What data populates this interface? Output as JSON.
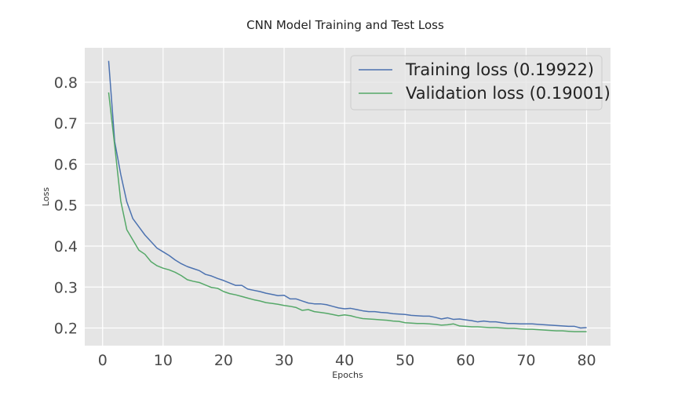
{
  "chart_data": {
    "type": "line",
    "title": "CNN Model Training and Test Loss",
    "xlabel": "Epochs",
    "ylabel": "Loss",
    "xlim": [
      -2.95,
      83.95
    ],
    "ylim": [
      0.157,
      0.884
    ],
    "xticks": [
      0,
      10,
      20,
      30,
      40,
      50,
      60,
      70,
      80
    ],
    "yticks": [
      0.2,
      0.3,
      0.4,
      0.5,
      0.6,
      0.7,
      0.8
    ],
    "grid": true,
    "legend_position": "top-right",
    "series": [
      {
        "name": "Training loss (0.19922)",
        "color": "#4c72b0",
        "x": [
          1,
          2,
          3,
          4,
          5,
          6,
          7,
          8,
          9,
          10,
          11,
          12,
          13,
          14,
          15,
          16,
          17,
          18,
          19,
          20,
          21,
          22,
          23,
          24,
          25,
          26,
          27,
          28,
          29,
          30,
          31,
          32,
          33,
          34,
          35,
          36,
          37,
          38,
          39,
          40,
          41,
          42,
          43,
          44,
          45,
          46,
          47,
          48,
          49,
          50,
          51,
          52,
          53,
          54,
          55,
          56,
          57,
          58,
          59,
          60,
          61,
          62,
          63,
          64,
          65,
          66,
          67,
          68,
          69,
          70,
          71,
          72,
          73,
          74,
          75,
          76,
          77,
          78,
          79,
          80
        ],
        "values": [
          0.852,
          0.655,
          0.575,
          0.508,
          0.467,
          0.447,
          0.427,
          0.411,
          0.395,
          0.386,
          0.377,
          0.366,
          0.357,
          0.35,
          0.345,
          0.34,
          0.331,
          0.327,
          0.321,
          0.316,
          0.31,
          0.304,
          0.304,
          0.295,
          0.292,
          0.289,
          0.285,
          0.282,
          0.279,
          0.28,
          0.271,
          0.271,
          0.266,
          0.261,
          0.259,
          0.259,
          0.257,
          0.253,
          0.249,
          0.247,
          0.248,
          0.245,
          0.242,
          0.24,
          0.24,
          0.238,
          0.237,
          0.235,
          0.234,
          0.233,
          0.231,
          0.23,
          0.229,
          0.229,
          0.226,
          0.222,
          0.225,
          0.221,
          0.222,
          0.22,
          0.218,
          0.215,
          0.217,
          0.215,
          0.215,
          0.213,
          0.211,
          0.211,
          0.21,
          0.21,
          0.21,
          0.209,
          0.208,
          0.207,
          0.206,
          0.205,
          0.204,
          0.204,
          0.2,
          0.201
        ]
      },
      {
        "name": "Validation loss (0.19001)",
        "color": "#55a868",
        "x": [
          1,
          2,
          3,
          4,
          5,
          6,
          7,
          8,
          9,
          10,
          11,
          12,
          13,
          14,
          15,
          16,
          17,
          18,
          19,
          20,
          21,
          22,
          23,
          24,
          25,
          26,
          27,
          28,
          29,
          30,
          31,
          32,
          33,
          34,
          35,
          36,
          37,
          38,
          39,
          40,
          41,
          42,
          43,
          44,
          45,
          46,
          47,
          48,
          49,
          50,
          51,
          52,
          53,
          54,
          55,
          56,
          57,
          58,
          59,
          60,
          61,
          62,
          63,
          64,
          65,
          66,
          67,
          68,
          69,
          70,
          71,
          72,
          73,
          74,
          75,
          76,
          77,
          78,
          79,
          80
        ],
        "values": [
          0.775,
          0.645,
          0.51,
          0.44,
          0.415,
          0.39,
          0.38,
          0.362,
          0.352,
          0.346,
          0.342,
          0.336,
          0.328,
          0.318,
          0.314,
          0.311,
          0.305,
          0.299,
          0.297,
          0.289,
          0.284,
          0.281,
          0.277,
          0.273,
          0.269,
          0.266,
          0.262,
          0.26,
          0.258,
          0.255,
          0.253,
          0.25,
          0.243,
          0.245,
          0.24,
          0.238,
          0.236,
          0.233,
          0.23,
          0.232,
          0.23,
          0.226,
          0.223,
          0.222,
          0.221,
          0.22,
          0.219,
          0.217,
          0.216,
          0.213,
          0.212,
          0.211,
          0.211,
          0.21,
          0.209,
          0.207,
          0.208,
          0.21,
          0.205,
          0.204,
          0.203,
          0.203,
          0.202,
          0.201,
          0.201,
          0.2,
          0.199,
          0.199,
          0.198,
          0.197,
          0.197,
          0.196,
          0.195,
          0.194,
          0.193,
          0.193,
          0.192,
          0.191,
          0.191,
          0.191
        ]
      }
    ]
  }
}
